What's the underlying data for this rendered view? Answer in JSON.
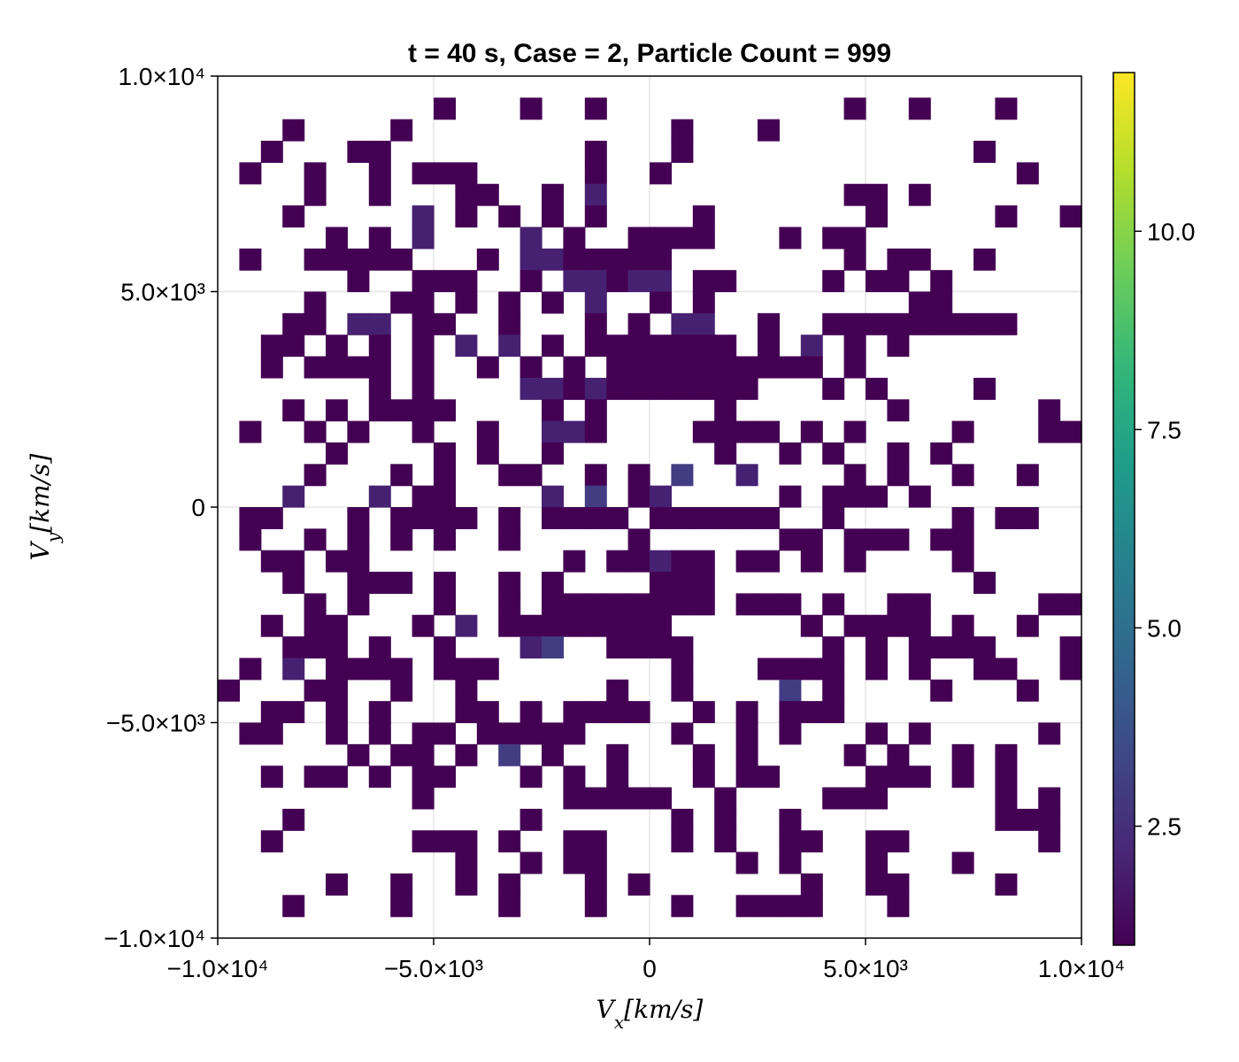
{
  "chart_data": {
    "type": "heatmap",
    "title": "t = 40 s, Case = 2, Particle Count = 999",
    "xlabel": "V_x[km/s]",
    "ylabel": "V_y[km/s]",
    "xlim": [
      -10000,
      10000
    ],
    "ylim": [
      -10000,
      10000
    ],
    "bins": 40,
    "bin_width": 500,
    "colormap": "viridis",
    "colormap_stops": [
      "#440154",
      "#482878",
      "#3e4989",
      "#31688e",
      "#26828e",
      "#1f9e89",
      "#35b779",
      "#6ece58",
      "#b5de2b",
      "#fde725"
    ],
    "color_range": [
      1,
      12
    ],
    "grid": true,
    "x_ticks": [
      {
        "value": -10000,
        "label": "−1.0×10⁴"
      },
      {
        "value": -5000,
        "label": "−5.0×10³"
      },
      {
        "value": 0,
        "label": "0"
      },
      {
        "value": 5000,
        "label": "5.0×10³"
      },
      {
        "value": 10000,
        "label": "1.0×10⁴"
      }
    ],
    "y_ticks": [
      {
        "value": -10000,
        "label": "−1.0×10⁴"
      },
      {
        "value": -5000,
        "label": "−5.0×10³"
      },
      {
        "value": 0,
        "label": "0"
      },
      {
        "value": 5000,
        "label": "5.0×10³"
      },
      {
        "value": 10000,
        "label": "1.0×10⁴"
      }
    ],
    "colorbar_ticks": [
      {
        "value": 2.5,
        "label": "2.5"
      },
      {
        "value": 5.0,
        "label": "5.0"
      },
      {
        "value": 7.5,
        "label": "7.5"
      },
      {
        "value": 10.0,
        "label": "10.0"
      }
    ],
    "rows": [
      "........................................",
      "..........1...1..1...........1..1...1...",
      "...1....1............1...1..............",
      "..1...11.........1...1.............1....",
      ".1..1..1.111.....1..1................1..",
      "....1..1...11..1.2...........11.1.......",
      "...1.....2.1.1.1.1....1.......1.....1..1",
      ".....1.1.2....2.1..1111...1.11..........",
      ".1..11111...1.2211111........1.11..1....",
      "......1..111..1.22122.11....1.11.1......",
      "....1...11.1.1.1.2..1.1.........11......",
      "...11.22.11..1...1.1.22..1..111111111...",
      "..11.1.1.1.2.2.1.1111111.1.2.1.1........",
      "..1.1111.1..1.1.1.1111111111.1..........",
      ".......1.1....22121111111...1.1....1....",
      "...1.1.1111....1.1.....1.......1......1.",
      ".1..1.1..1..1..221....1111.1.1....1...11",
      ".....1....1.1..1.......1..1.1..1.1......",
      "....1...1.1..11..1.1.3..2....1.1..1..1..",
      "...2...2.11....2.3.12.....1.111.1.......",
      ".11...1.1111.1.1111.111111..1.....1.11..",
      ".1..1.1.1.1..1.....1......11.111.11.....",
      "..11.11.........1.11211.11.1.1....1.....",
      "...1..111.1..1.1....111............1....",
      "....1.1...1..1.11111111.111.1..11.....11",
      "..1.11...1.2.11111111......1.1111.1..1..",
      "...111.1..1...23..1111......1.1.1111...1",
      ".1.2.1111.111........1...1111.1.1..11..1",
      "1...11..1..1......1..1....3.1....1...1..",
      "..11.1.1...11.1.1111..1.1.111...........",
      ".11..1.1.11.11111....1..1.1...1.1.....1.",
      "......1.11.1.3.1..1...1.1....1.1..1.1...",
      "..1.11.1.11...1.1.1...1.11....111.1.1...",
      ".........1......11111..1....111.....1.1.",
      "...1..........1......1.1..1.........111.",
      "..1......111.1..11...1.1..11..11......1.",
      "...........1..1.11......1.1...1...1.....",
      ".....1..1..1.1...1.1.......1..11....1...",
      "...1....1....1...1...1..1111...1........",
      "........................................"
    ],
    "rows_note": "",
    "hot_cells": []
  }
}
